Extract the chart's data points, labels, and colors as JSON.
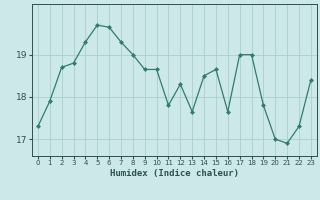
{
  "title": "",
  "xlabel": "Humidex (Indice chaleur)",
  "x": [
    0,
    1,
    2,
    3,
    4,
    5,
    6,
    7,
    8,
    9,
    10,
    11,
    12,
    13,
    14,
    15,
    16,
    17,
    18,
    19,
    20,
    21,
    22,
    23
  ],
  "y": [
    17.3,
    17.9,
    18.7,
    18.8,
    19.3,
    19.7,
    19.65,
    19.3,
    19.0,
    18.65,
    18.65,
    17.8,
    18.3,
    17.65,
    18.5,
    18.65,
    17.65,
    19.0,
    19.0,
    17.8,
    17.0,
    16.9,
    17.3,
    18.4
  ],
  "line_color": "#2e7d6e",
  "marker_color": "#2e7d6e",
  "bg_color": "#cce8e8",
  "grid_color": "#aad0d0",
  "tick_label_color": "#2e5050",
  "axis_color": "#2e5050",
  "yticks": [
    17,
    18,
    19
  ],
  "ylim": [
    16.6,
    20.2
  ],
  "xlim": [
    -0.5,
    23.5
  ]
}
